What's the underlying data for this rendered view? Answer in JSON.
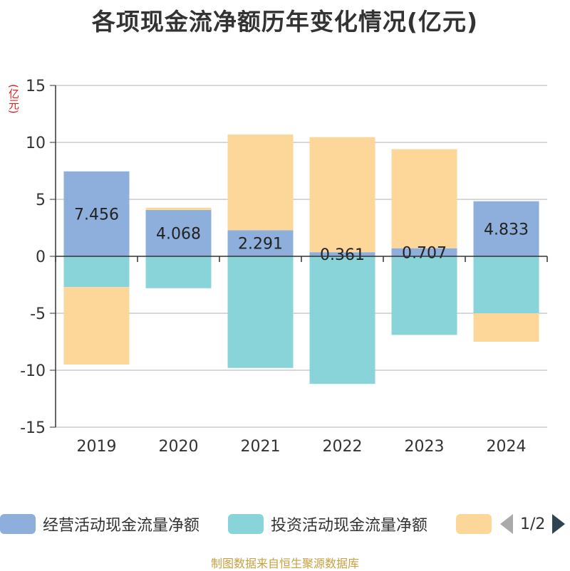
{
  "title": "各项现金流净额历年变化情况(亿元)",
  "unit_label": "(亿元)",
  "source": "制图数据来自恒生聚源数据库",
  "legend": {
    "items": [
      {
        "label": "经营活动现金流量净额",
        "color": "#8eaedb"
      },
      {
        "label": "投资活动现金流量净额",
        "color": "#88d4d8"
      },
      {
        "label": "",
        "color": "#fdd79a"
      }
    ],
    "page": "1/2"
  },
  "chart_data": {
    "type": "bar",
    "stacked": true,
    "categories": [
      "2019",
      "2020",
      "2021",
      "2022",
      "2023",
      "2024"
    ],
    "ylim": [
      -15,
      15
    ],
    "yticks": [
      15,
      10,
      5,
      0,
      -5,
      -10,
      -15
    ],
    "ytick_labels": [
      "15",
      "10",
      "5",
      "0",
      "-5",
      "-10",
      "-15"
    ],
    "grid": true,
    "series": [
      {
        "name": "经营活动现金流量净额",
        "color": "#8eaedb",
        "values": [
          7.456,
          4.068,
          2.291,
          0.361,
          0.707,
          4.833
        ],
        "labels": [
          "7.456",
          "4.068",
          "2.291",
          "0.361",
          "0.707",
          "4.833"
        ]
      },
      {
        "name": "投资活动现金流量净额",
        "color": "#88d4d8",
        "values": [
          -2.7,
          -2.8,
          -9.8,
          -11.2,
          -6.9,
          -5.0
        ]
      },
      {
        "color": "#fdd79a",
        "values": [
          -6.8,
          0.2,
          8.4,
          10.1,
          8.7,
          -2.5
        ]
      }
    ]
  }
}
